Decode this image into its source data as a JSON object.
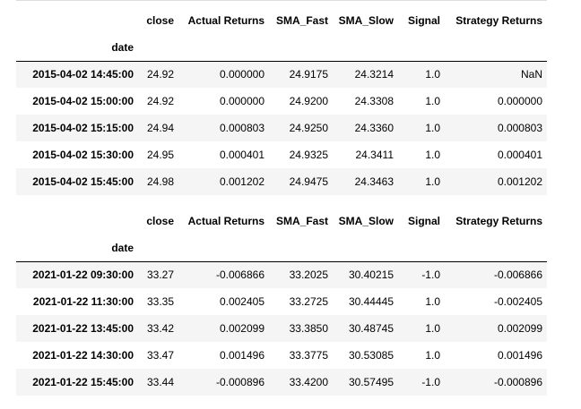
{
  "tables": [
    {
      "columns": [
        "close",
        "Actual Returns",
        "SMA_Fast",
        "SMA_Slow",
        "Signal",
        "Strategy Returns"
      ],
      "index_name": "date",
      "rows": [
        {
          "date": "2015-04-02 14:45:00",
          "cells": [
            "24.92",
            "0.000000",
            "24.9175",
            "24.3214",
            "1.0",
            "NaN"
          ]
        },
        {
          "date": "2015-04-02 15:00:00",
          "cells": [
            "24.92",
            "0.000000",
            "24.9200",
            "24.3308",
            "1.0",
            "0.000000"
          ]
        },
        {
          "date": "2015-04-02 15:15:00",
          "cells": [
            "24.94",
            "0.000803",
            "24.9250",
            "24.3360",
            "1.0",
            "0.000803"
          ]
        },
        {
          "date": "2015-04-02 15:30:00",
          "cells": [
            "24.95",
            "0.000401",
            "24.9325",
            "24.3411",
            "1.0",
            "0.000401"
          ]
        },
        {
          "date": "2015-04-02 15:45:00",
          "cells": [
            "24.98",
            "0.001202",
            "24.9475",
            "24.3463",
            "1.0",
            "0.001202"
          ]
        }
      ]
    },
    {
      "columns": [
        "close",
        "Actual Returns",
        "SMA_Fast",
        "SMA_Slow",
        "Signal",
        "Strategy Returns"
      ],
      "index_name": "date",
      "rows": [
        {
          "date": "2021-01-22 09:30:00",
          "cells": [
            "33.27",
            "-0.006866",
            "33.2025",
            "30.40215",
            "-1.0",
            "-0.006866"
          ]
        },
        {
          "date": "2021-01-22 11:30:00",
          "cells": [
            "33.35",
            "0.002405",
            "33.2725",
            "30.44445",
            "1.0",
            "-0.002405"
          ]
        },
        {
          "date": "2021-01-22 13:45:00",
          "cells": [
            "33.42",
            "0.002099",
            "33.3850",
            "30.48745",
            "1.0",
            "0.002099"
          ]
        },
        {
          "date": "2021-01-22 14:30:00",
          "cells": [
            "33.47",
            "0.001496",
            "33.3775",
            "30.53085",
            "1.0",
            "0.001496"
          ]
        },
        {
          "date": "2021-01-22 15:45:00",
          "cells": [
            "33.44",
            "-0.000896",
            "33.4200",
            "30.57495",
            "-1.0",
            "-0.000896"
          ]
        }
      ]
    }
  ]
}
